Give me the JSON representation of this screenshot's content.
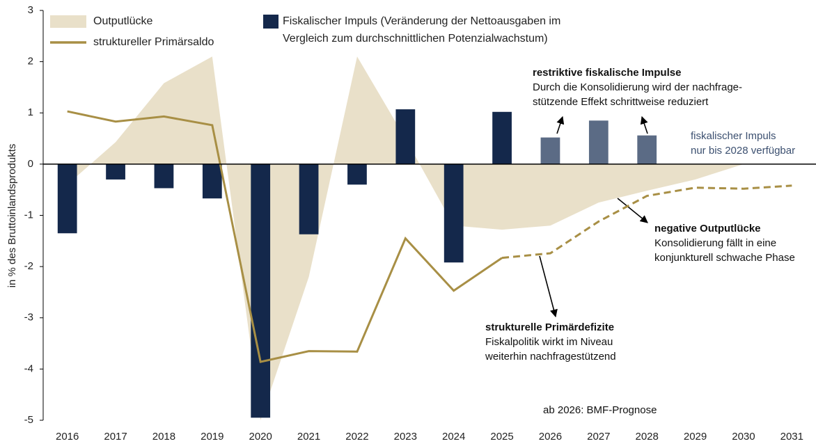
{
  "chart_data": {
    "type": "combo",
    "y_axis_label": "in % des Bruttoinlandsprodukts",
    "categories": [
      "2016",
      "2017",
      "2018",
      "2019",
      "2020",
      "2021",
      "2022",
      "2023",
      "2024",
      "2025",
      "2026",
      "2027",
      "2028",
      "2029",
      "2030",
      "2031"
    ],
    "ylim": [
      -5,
      3
    ],
    "yticks": [
      -5,
      -4,
      -3,
      -2,
      -1,
      0,
      1,
      2,
      3
    ],
    "series": [
      {
        "name": "Outputlücke",
        "kind": "area",
        "color": "#e9e0c9",
        "values": [
          -0.4,
          0.43,
          1.58,
          2.1,
          -5.0,
          -2.2,
          2.1,
          0.5,
          -1.2,
          -1.28,
          -1.2,
          -0.75,
          -0.52,
          -0.3,
          0.0,
          null
        ]
      },
      {
        "name": [
          "Fiskalischer Impuls (Veränderung der Nettoausgaben im",
          "Vergleich zum durchschnittlichen Potenzialwachstum)"
        ],
        "kind": "bar",
        "color": "#14284b",
        "colors": [
          "#14284b",
          "#14284b",
          "#14284b",
          "#14284b",
          "#14284b",
          "#14284b",
          "#14284b",
          "#14284b",
          "#14284b",
          "#14284b",
          "#5b6b85",
          "#5b6b85",
          "#5b6b85",
          null,
          null,
          null
        ],
        "values": [
          -1.35,
          -0.3,
          -0.47,
          -0.67,
          -4.95,
          -1.37,
          -0.4,
          1.07,
          -1.92,
          1.02,
          0.52,
          0.85,
          0.56,
          null,
          null,
          null
        ]
      },
      {
        "name": "struktureller Primärsaldo",
        "kind": "line",
        "color": "#a88f45",
        "dashed_from": "2025",
        "values": [
          1.03,
          0.83,
          0.93,
          0.76,
          -3.86,
          -3.65,
          -3.66,
          -1.45,
          -2.47,
          -1.83,
          -1.74,
          -1.12,
          -0.62,
          -0.46,
          -0.48,
          -0.42
        ]
      }
    ],
    "annotations": [
      {
        "title": "restriktive fiskalische Impulse",
        "lines": [
          "Durch die Konsolidierung wird der nachfrage-",
          "stützende Effekt schrittweise reduziert"
        ]
      },
      {
        "lines": [
          "fiskalischer Impuls",
          "nur bis 2028 verfügbar"
        ]
      },
      {
        "title": "negative Outputlücke",
        "lines": [
          "Konsolidierung fällt in eine",
          "konjunkturell schwache Phase"
        ]
      },
      {
        "title": "strukturelle Primärdefizite",
        "lines": [
          "Fiskalpolitik wirkt im Niveau",
          "weiterhin nachfragestützend"
        ]
      },
      {
        "lines": [
          "ab 2026: BMF-Prognose"
        ]
      }
    ]
  }
}
